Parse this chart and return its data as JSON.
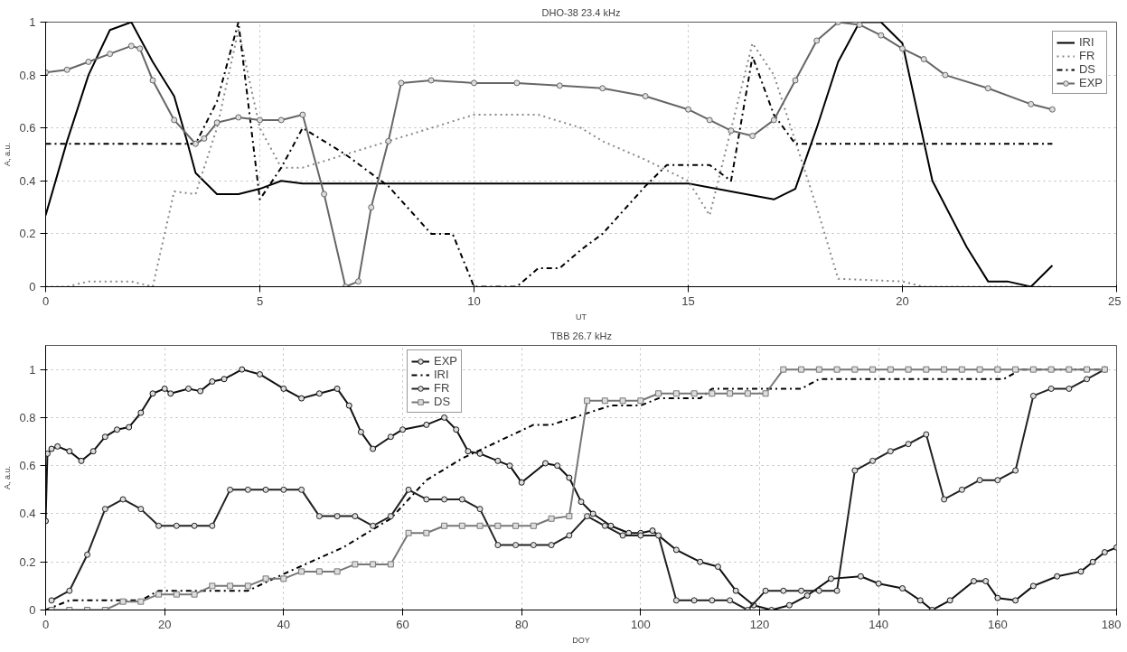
{
  "chart_data": [
    {
      "type": "line",
      "title": "DHO-38 23.4 kHz",
      "xlabel": "UT",
      "ylabel": "A, a.u.",
      "xlim": [
        0,
        25
      ],
      "ylim": [
        0,
        1
      ],
      "xticks": [
        0,
        5,
        10,
        15,
        20,
        25
      ],
      "yticks": [
        0,
        0.2,
        0.4,
        0.6,
        0.8,
        1
      ],
      "grid": true,
      "legend": "top right",
      "series": [
        {
          "name": "IRI",
          "color": "#000000",
          "line_style": "solid",
          "marker": "none",
          "x": [
            0,
            0.5,
            1,
            1.5,
            2,
            2.5,
            3,
            3.3,
            3.5,
            4,
            4.5,
            5,
            5.5,
            6,
            10,
            15,
            16,
            17,
            17.5,
            18,
            18.5,
            19,
            19.5,
            20,
            20.7,
            21.5,
            22,
            22.45,
            23,
            23.5
          ],
          "values": [
            0.27,
            0.55,
            0.8,
            0.97,
            1.0,
            0.85,
            0.72,
            0.55,
            0.43,
            0.35,
            0.35,
            0.37,
            0.4,
            0.39,
            0.39,
            0.39,
            0.36,
            0.33,
            0.37,
            0.6,
            0.85,
            1.0,
            1.0,
            0.92,
            0.4,
            0.15,
            0.02,
            0.02,
            0.0,
            0.08
          ]
        },
        {
          "name": "FR",
          "color": "#888888",
          "line_style": "dotted",
          "marker": "none",
          "x": [
            0,
            0.5,
            1,
            2,
            2.5,
            3,
            3.5,
            4,
            4.5,
            5,
            5.5,
            6,
            7,
            8,
            9,
            10,
            11.5,
            12.5,
            13,
            14,
            15,
            15.5,
            16.5,
            17,
            17.5,
            18,
            18.5,
            20,
            20.5,
            23.5
          ],
          "values": [
            0,
            0,
            0.02,
            0.02,
            0,
            0.36,
            0.35,
            0.6,
            0.97,
            0.6,
            0.45,
            0.45,
            0.5,
            0.55,
            0.6,
            0.65,
            0.65,
            0.6,
            0.55,
            0.48,
            0.4,
            0.27,
            0.92,
            0.8,
            0.55,
            0.3,
            0.03,
            0.02,
            0,
            0
          ]
        },
        {
          "name": "DS",
          "color": "#000000",
          "line_style": "dashdot",
          "marker": "none",
          "x": [
            0,
            3.5,
            4,
            4.5,
            5,
            5.5,
            6,
            7,
            8,
            9,
            9.5,
            10,
            11,
            11.5,
            12,
            12.5,
            13,
            14,
            14.5,
            15.5,
            16,
            16.5,
            17,
            17.5,
            23.5
          ],
          "values": [
            0.54,
            0.54,
            0.7,
            1.0,
            0.33,
            0.45,
            0.6,
            0.5,
            0.38,
            0.2,
            0.2,
            0,
            0,
            0.07,
            0.07,
            0.14,
            0.2,
            0.38,
            0.46,
            0.46,
            0.4,
            0.87,
            0.65,
            0.54,
            0.54
          ]
        },
        {
          "name": "EXP",
          "color": "#666666",
          "line_style": "solid",
          "marker": "circle",
          "x": [
            0,
            0.5,
            1,
            1.5,
            2,
            2.2,
            2.5,
            3,
            3.5,
            3.7,
            4,
            4.5,
            5,
            5.5,
            6,
            6.5,
            7,
            7.3,
            7.6,
            8,
            8.3,
            9,
            10,
            11,
            12,
            13,
            14,
            15,
            15.5,
            16,
            16.5,
            17,
            17.5,
            18,
            18.5,
            19,
            19.5,
            20,
            20.5,
            21,
            22,
            23,
            23.5
          ],
          "values": [
            0.81,
            0.82,
            0.85,
            0.88,
            0.91,
            0.9,
            0.78,
            0.63,
            0.54,
            0.56,
            0.62,
            0.64,
            0.63,
            0.63,
            0.65,
            0.35,
            0.0,
            0.02,
            0.3,
            0.55,
            0.77,
            0.78,
            0.77,
            0.77,
            0.76,
            0.75,
            0.72,
            0.67,
            0.63,
            0.59,
            0.57,
            0.63,
            0.78,
            0.93,
            1.0,
            0.99,
            0.95,
            0.9,
            0.86,
            0.8,
            0.75,
            0.69,
            0.67
          ]
        }
      ]
    },
    {
      "type": "line",
      "title": "TBB 26.7 kHz",
      "xlabel": "DOY",
      "ylabel": "A, a.u.",
      "xlim": [
        0,
        180
      ],
      "ylim": [
        0,
        1.1
      ],
      "xticks": [
        0,
        20,
        40,
        60,
        80,
        100,
        120,
        140,
        160,
        180
      ],
      "yticks": [
        0,
        0.2,
        0.4,
        0.6,
        0.8,
        1
      ],
      "grid": true,
      "legend": "top",
      "series": [
        {
          "name": "EXP",
          "color": "#111111",
          "line_style": "solid",
          "marker": "circle",
          "x": [
            0,
            0.3,
            1,
            2,
            4,
            6,
            8,
            10,
            12,
            14,
            16,
            18,
            20,
            21,
            24,
            26,
            28,
            30,
            33,
            36,
            40,
            43,
            46,
            49,
            51,
            53,
            55,
            58,
            60,
            64,
            67,
            69,
            71,
            73,
            76,
            78,
            80,
            84,
            86,
            88,
            90,
            92,
            95,
            98,
            100,
            102,
            106,
            110,
            113,
            116,
            119,
            122,
            125,
            128,
            132,
            137,
            140,
            144,
            147,
            149,
            152,
            156,
            158,
            160,
            163,
            166,
            170,
            174,
            176,
            178,
            180
          ],
          "values": [
            0.37,
            0.65,
            0.67,
            0.68,
            0.66,
            0.62,
            0.66,
            0.72,
            0.75,
            0.76,
            0.82,
            0.9,
            0.92,
            0.9,
            0.92,
            0.91,
            0.95,
            0.96,
            1.0,
            0.98,
            0.92,
            0.88,
            0.9,
            0.92,
            0.85,
            0.74,
            0.67,
            0.72,
            0.75,
            0.77,
            0.8,
            0.75,
            0.66,
            0.65,
            0.62,
            0.6,
            0.53,
            0.61,
            0.6,
            0.55,
            0.45,
            0.4,
            0.35,
            0.32,
            0.32,
            0.33,
            0.25,
            0.2,
            0.18,
            0.08,
            0.02,
            0.0,
            0.02,
            0.06,
            0.13,
            0.14,
            0.11,
            0.09,
            0.04,
            0.0,
            0.04,
            0.12,
            0.12,
            0.05,
            0.04,
            0.1,
            0.14,
            0.16,
            0.2,
            0.24,
            0.26
          ]
        },
        {
          "name": "IRI",
          "color": "#000000",
          "line_style": "dashdot",
          "marker": "none",
          "x": [
            0,
            4,
            16,
            19,
            34,
            40,
            50,
            58,
            64,
            70,
            76,
            82,
            85,
            90,
            95,
            100,
            103,
            110,
            112,
            127,
            130,
            161,
            164,
            178
          ],
          "values": [
            0,
            0.04,
            0.04,
            0.08,
            0.08,
            0.15,
            0.26,
            0.38,
            0.54,
            0.63,
            0.7,
            0.77,
            0.77,
            0.81,
            0.85,
            0.85,
            0.88,
            0.88,
            0.92,
            0.92,
            0.96,
            0.96,
            1.0,
            1.0
          ]
        },
        {
          "name": "FR",
          "color": "#222222",
          "line_style": "solid",
          "marker": "circle",
          "x": [
            1,
            4,
            7,
            10,
            13,
            16,
            19,
            22,
            25,
            28,
            31,
            34,
            37,
            40,
            43,
            46,
            49,
            52,
            55,
            58,
            61,
            64,
            67,
            70,
            73,
            76,
            79,
            82,
            85,
            88,
            91,
            94,
            97,
            100,
            103,
            106,
            109,
            112,
            115,
            118,
            121,
            124,
            127,
            130,
            133,
            136,
            139,
            142,
            145,
            148,
            151,
            154,
            157,
            160,
            163,
            166,
            169,
            172,
            175,
            178
          ],
          "values": [
            0.04,
            0.08,
            0.23,
            0.42,
            0.46,
            0.42,
            0.35,
            0.35,
            0.35,
            0.35,
            0.5,
            0.5,
            0.5,
            0.5,
            0.5,
            0.39,
            0.39,
            0.39,
            0.35,
            0.39,
            0.5,
            0.46,
            0.46,
            0.46,
            0.42,
            0.27,
            0.27,
            0.27,
            0.27,
            0.31,
            0.39,
            0.35,
            0.31,
            0.31,
            0.31,
            0.04,
            0.04,
            0.04,
            0.04,
            0.0,
            0.08,
            0.08,
            0.08,
            0.08,
            0.08,
            0.58,
            0.62,
            0.66,
            0.69,
            0.73,
            0.46,
            0.5,
            0.54,
            0.54,
            0.58,
            0.89,
            0.92,
            0.92,
            0.96,
            1.0
          ]
        },
        {
          "name": "DS",
          "color": "#777777",
          "line_style": "solid",
          "marker": "square",
          "x": [
            1,
            4,
            7,
            10,
            13,
            16,
            19,
            22,
            25,
            28,
            31,
            34,
            37,
            40,
            43,
            46,
            49,
            52,
            55,
            58,
            61,
            64,
            67,
            70,
            73,
            76,
            79,
            82,
            85,
            88,
            91,
            94,
            97,
            100,
            103,
            106,
            109,
            112,
            115,
            118,
            121,
            124,
            127,
            130,
            133,
            136,
            139,
            142,
            145,
            148,
            151,
            154,
            157,
            160,
            163,
            166,
            169,
            172,
            175,
            178
          ],
          "values": [
            0,
            0,
            0,
            0,
            0.035,
            0.035,
            0.065,
            0.065,
            0.065,
            0.1,
            0.1,
            0.1,
            0.13,
            0.13,
            0.16,
            0.16,
            0.16,
            0.19,
            0.19,
            0.19,
            0.32,
            0.32,
            0.35,
            0.35,
            0.35,
            0.35,
            0.35,
            0.35,
            0.38,
            0.39,
            0.87,
            0.87,
            0.87,
            0.87,
            0.9,
            0.9,
            0.9,
            0.9,
            0.9,
            0.9,
            0.9,
            1.0,
            1.0,
            1.0,
            1.0,
            1.0,
            1.0,
            1.0,
            1.0,
            1.0,
            1.0,
            1.0,
            1.0,
            1.0,
            1.0,
            1.0,
            1.0,
            1.0,
            1.0,
            1.0
          ]
        }
      ]
    }
  ]
}
